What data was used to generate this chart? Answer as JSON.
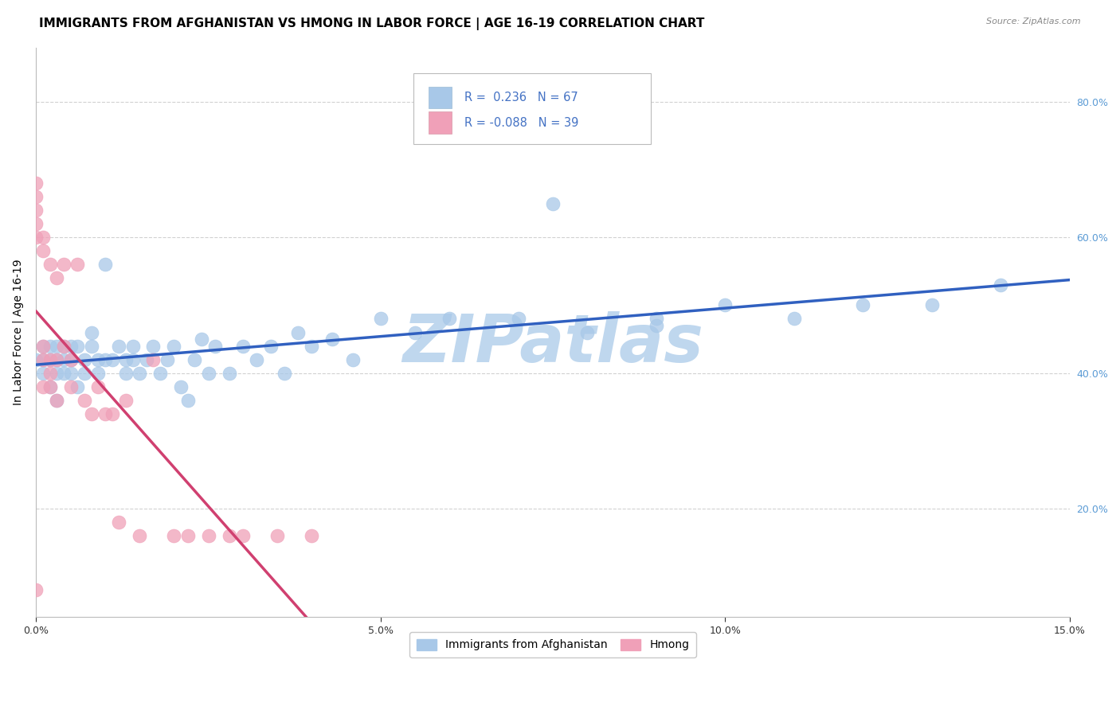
{
  "title": "IMMIGRANTS FROM AFGHANISTAN VS HMONG IN LABOR FORCE | AGE 16-19 CORRELATION CHART",
  "source": "Source: ZipAtlas.com",
  "ylabel": "In Labor Force | Age 16-19",
  "xlim": [
    0.0,
    0.15
  ],
  "ylim": [
    0.04,
    0.88
  ],
  "xticks": [
    0.0,
    0.05,
    0.1,
    0.15
  ],
  "xtick_labels": [
    "0.0%",
    "5.0%",
    "10.0%",
    "15.0%"
  ],
  "yticks_right": [
    0.2,
    0.4,
    0.6,
    0.8
  ],
  "ytick_labels_right": [
    "20.0%",
    "40.0%",
    "60.0%",
    "80.0%"
  ],
  "afghanistan_color": "#A8C8E8",
  "hmong_color": "#F0A0B8",
  "afghanistan_line_color": "#3060C0",
  "hmong_line_color": "#D04070",
  "hmong_line_dash_color": "#E090A8",
  "R_afghanistan": 0.236,
  "N_afghanistan": 67,
  "R_hmong": -0.088,
  "N_hmong": 39,
  "afghanistan_x": [
    0.0,
    0.001,
    0.001,
    0.001,
    0.002,
    0.002,
    0.002,
    0.003,
    0.003,
    0.003,
    0.003,
    0.004,
    0.004,
    0.004,
    0.005,
    0.005,
    0.005,
    0.006,
    0.006,
    0.007,
    0.007,
    0.008,
    0.008,
    0.009,
    0.009,
    0.01,
    0.01,
    0.011,
    0.012,
    0.013,
    0.013,
    0.014,
    0.014,
    0.015,
    0.016,
    0.017,
    0.018,
    0.019,
    0.02,
    0.021,
    0.022,
    0.023,
    0.024,
    0.025,
    0.026,
    0.028,
    0.03,
    0.032,
    0.034,
    0.036,
    0.038,
    0.04,
    0.043,
    0.046,
    0.05,
    0.055,
    0.06,
    0.07,
    0.08,
    0.09,
    0.1,
    0.11,
    0.12,
    0.13,
    0.14,
    0.09,
    0.075
  ],
  "afghanistan_y": [
    0.42,
    0.42,
    0.44,
    0.4,
    0.42,
    0.44,
    0.38,
    0.42,
    0.44,
    0.4,
    0.36,
    0.42,
    0.44,
    0.4,
    0.44,
    0.42,
    0.4,
    0.44,
    0.38,
    0.42,
    0.4,
    0.44,
    0.46,
    0.42,
    0.4,
    0.56,
    0.42,
    0.42,
    0.44,
    0.42,
    0.4,
    0.44,
    0.42,
    0.4,
    0.42,
    0.44,
    0.4,
    0.42,
    0.44,
    0.38,
    0.36,
    0.42,
    0.45,
    0.4,
    0.44,
    0.4,
    0.44,
    0.42,
    0.44,
    0.4,
    0.46,
    0.44,
    0.45,
    0.42,
    0.48,
    0.46,
    0.48,
    0.48,
    0.46,
    0.48,
    0.5,
    0.48,
    0.5,
    0.5,
    0.53,
    0.47,
    0.65
  ],
  "hmong_x": [
    0.0,
    0.0,
    0.0,
    0.0,
    0.0,
    0.0,
    0.001,
    0.001,
    0.001,
    0.001,
    0.001,
    0.002,
    0.002,
    0.002,
    0.002,
    0.003,
    0.003,
    0.003,
    0.004,
    0.004,
    0.005,
    0.005,
    0.006,
    0.007,
    0.008,
    0.009,
    0.01,
    0.011,
    0.012,
    0.013,
    0.015,
    0.017,
    0.02,
    0.022,
    0.025,
    0.028,
    0.03,
    0.035,
    0.04
  ],
  "hmong_y": [
    0.62,
    0.64,
    0.66,
    0.68,
    0.6,
    0.08,
    0.42,
    0.44,
    0.38,
    0.58,
    0.6,
    0.42,
    0.56,
    0.4,
    0.38,
    0.54,
    0.42,
    0.36,
    0.56,
    0.44,
    0.42,
    0.38,
    0.56,
    0.36,
    0.34,
    0.38,
    0.34,
    0.34,
    0.18,
    0.36,
    0.16,
    0.42,
    0.16,
    0.16,
    0.16,
    0.16,
    0.16,
    0.16,
    0.16
  ],
  "watermark": "ZIPatlas",
  "watermark_color": "#BFD7EE",
  "background_color": "#FFFFFF",
  "grid_color": "#CCCCCC",
  "title_fontsize": 11,
  "axis_label_fontsize": 10,
  "tick_fontsize": 9,
  "source_fontsize": 8
}
